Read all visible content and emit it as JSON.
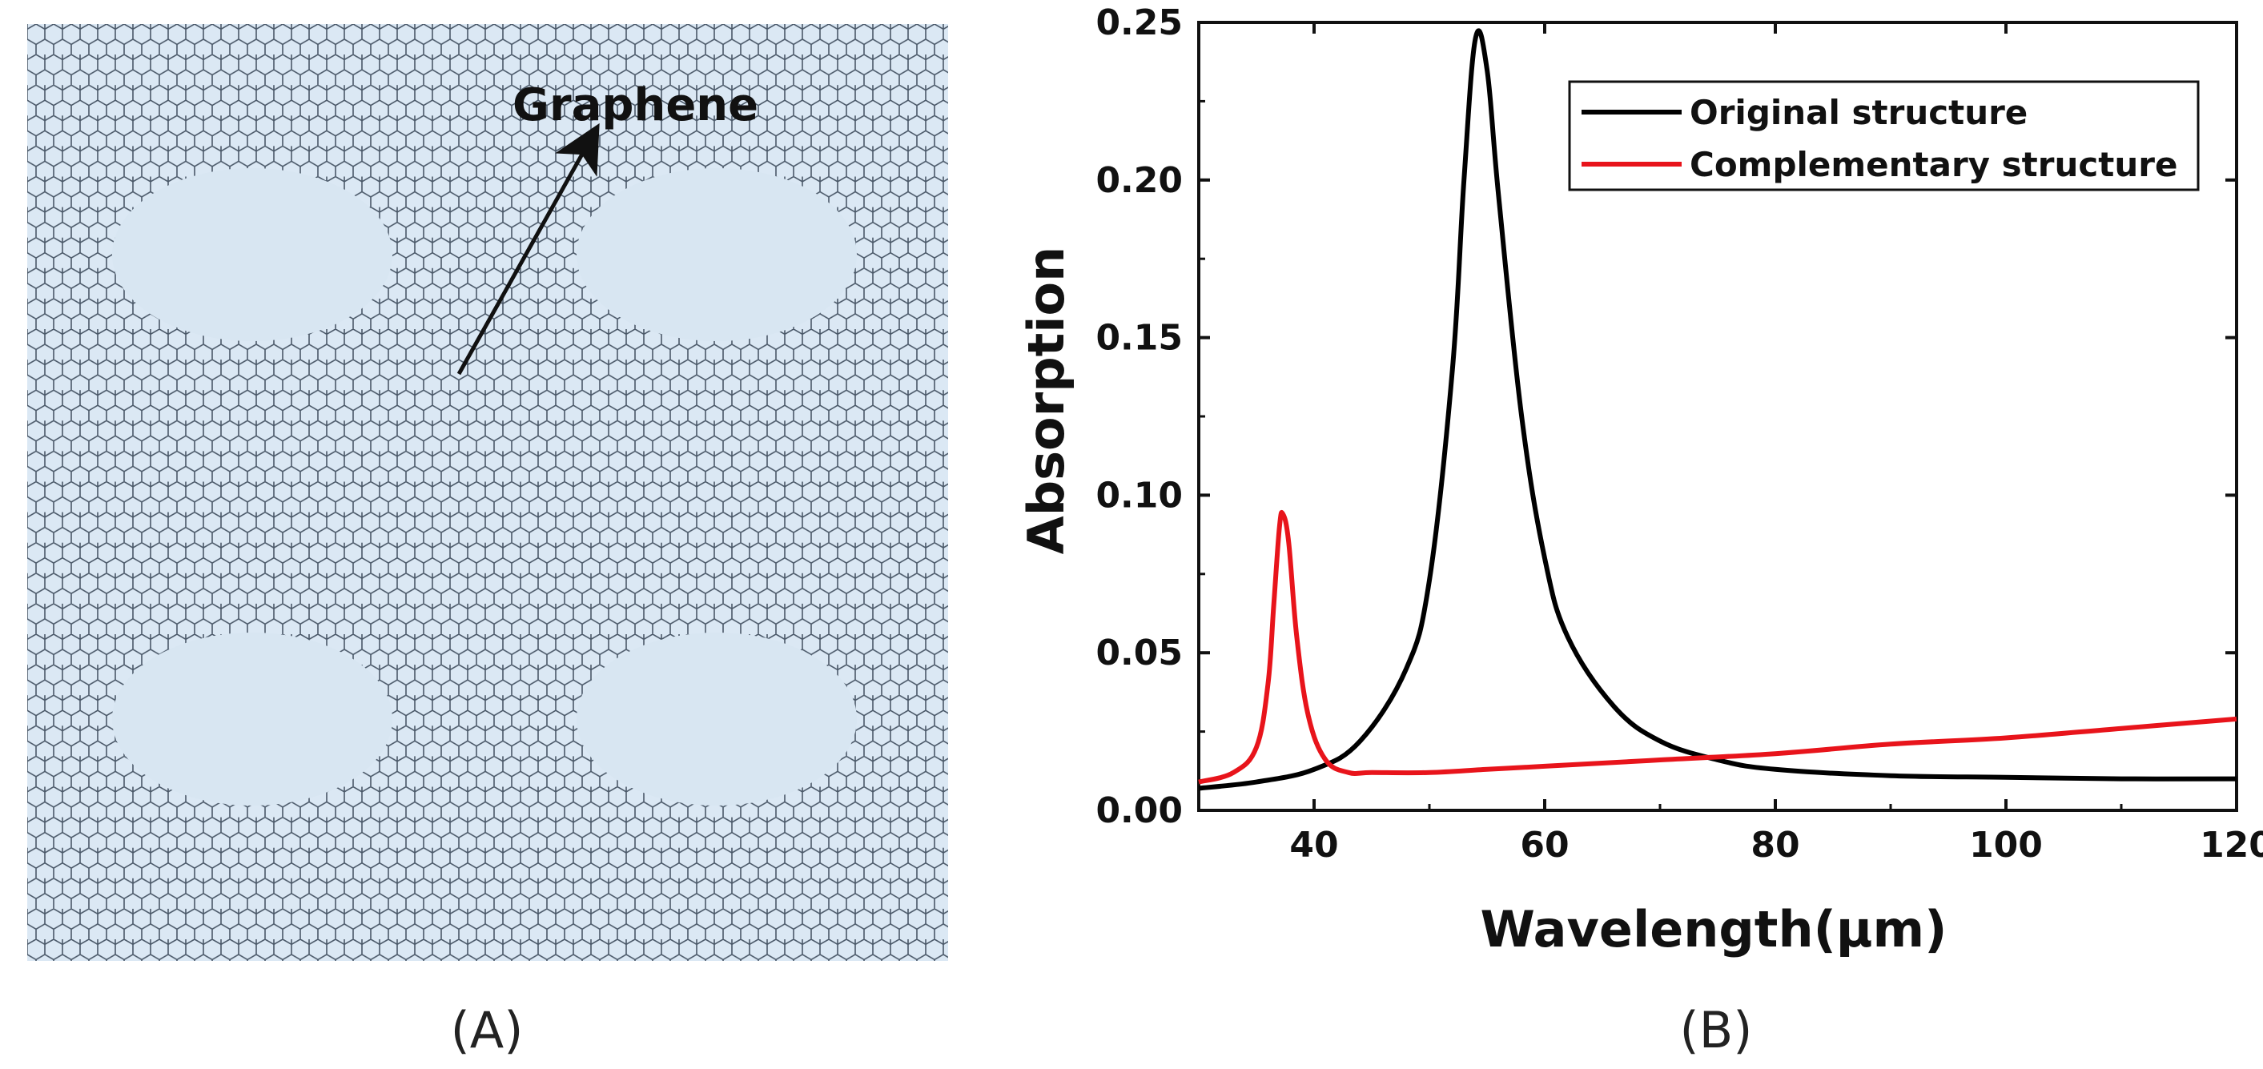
{
  "panels": {
    "a": {
      "label": "(A)",
      "annotation": "Graphene",
      "colors": {
        "lattice_fill": "#dbe8f4",
        "lattice_line": "#4a5868",
        "hole_fill": "#d8e6f2"
      }
    },
    "b": {
      "label": "(B)"
    }
  },
  "chart_data": {
    "type": "line",
    "title": "",
    "xlabel": "Wavelength(μm)",
    "ylabel": "Absorption",
    "xlim": [
      30,
      120
    ],
    "ylim": [
      0,
      0.25
    ],
    "xticks": [
      "40",
      "60",
      "80",
      "100",
      "120"
    ],
    "yticks": [
      "0.00",
      "0.05",
      "0.10",
      "0.15",
      "0.20",
      "0.25"
    ],
    "legend_position": "top-right",
    "series": [
      {
        "name": "Original structure",
        "color": "#000000",
        "x": [
          30,
          35,
          40,
          44,
          48,
          50,
          52,
          53,
          54,
          55,
          56,
          58,
          60,
          62,
          66,
          70,
          75,
          80,
          90,
          100,
          110,
          120
        ],
        "y": [
          0.007,
          0.009,
          0.013,
          0.022,
          0.045,
          0.073,
          0.14,
          0.2,
          0.245,
          0.235,
          0.195,
          0.125,
          0.08,
          0.055,
          0.033,
          0.022,
          0.016,
          0.013,
          0.011,
          0.0105,
          0.01,
          0.01
        ]
      },
      {
        "name": "Complementary structure",
        "color": "#e8141b",
        "x": [
          30,
          33,
          35,
          36,
          36.5,
          37,
          37.3,
          37.8,
          38.5,
          39.5,
          41,
          43,
          45,
          50,
          55,
          60,
          70,
          80,
          90,
          100,
          110,
          120
        ],
        "y": [
          0.009,
          0.012,
          0.02,
          0.04,
          0.065,
          0.09,
          0.094,
          0.085,
          0.055,
          0.03,
          0.016,
          0.012,
          0.012,
          0.012,
          0.013,
          0.014,
          0.016,
          0.018,
          0.021,
          0.023,
          0.026,
          0.029
        ]
      }
    ]
  }
}
